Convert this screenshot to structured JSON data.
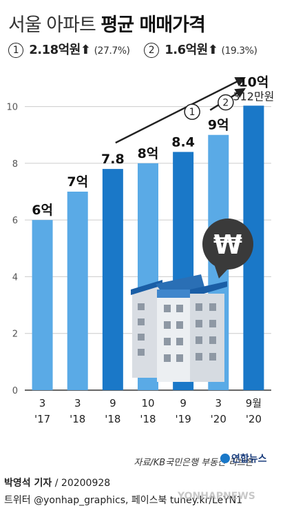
{
  "title": {
    "light": "서울 아파트",
    "bold": "평균 매매가격"
  },
  "summary": [
    {
      "marker": "1",
      "amount": "2.18억원",
      "arrow": "⬆",
      "pct": "(27.7%)"
    },
    {
      "marker": "2",
      "amount": "1.6억원",
      "arrow": "⬆",
      "pct": "(19.3%)"
    }
  ],
  "chart_data": {
    "type": "bar",
    "categories": [
      "3 '17",
      "3 '18",
      "9 '18",
      "10 '18",
      "9 '19",
      "3 '20",
      "9월 '20"
    ],
    "tick_top": [
      "3",
      "3",
      "9",
      "10",
      "9",
      "3",
      "9월"
    ],
    "tick_bottom": [
      "'17",
      "'18",
      "'18",
      "'18",
      "'19",
      "'20",
      "'20"
    ],
    "values": [
      6,
      7,
      7.8,
      8,
      8.4,
      9,
      10.0312
    ],
    "data_labels": [
      "6억",
      "7억",
      "7.8",
      "8억",
      "8.4",
      "9억",
      "10억"
    ],
    "last_sublabel": "312만원",
    "yticks": [
      0,
      2,
      4,
      6,
      8,
      10
    ],
    "ylim": [
      0,
      10.5
    ],
    "grid": true,
    "bar_colors": [
      "#5aaae6",
      "#5aaae6",
      "#1a78c8",
      "#5aaae6",
      "#1a78c8",
      "#5aaae6",
      "#1a78c8"
    ],
    "arrow_markers": [
      "1",
      "2"
    ]
  },
  "colors": {
    "light_bar": "#5aaae6",
    "dark_bar": "#1a78c8",
    "axis": "#333333",
    "grid": "#cccccc",
    "speech_bubble": "#3a3a3a"
  },
  "icons": [
    "apartment-building-icon",
    "won-currency-speech-bubble-icon"
  ],
  "source": "자료/KB국민은행 부동산 리브온",
  "logo_text": "연합뉴스",
  "credit": {
    "author": "박영석 기자",
    "date": "20200928",
    "social": "트위터 @yonhap_graphics, 페이스북 tuney.kr/LeYN1"
  },
  "watermark": "YONHAPNEWS"
}
